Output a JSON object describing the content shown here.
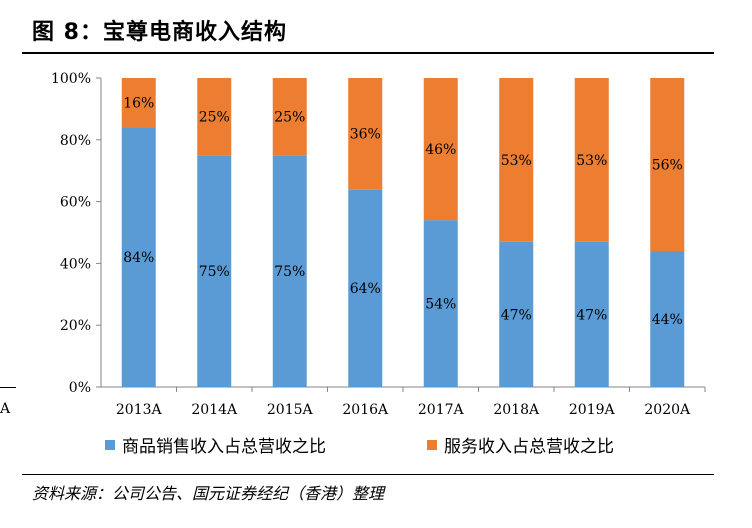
{
  "figure": {
    "title": "图 8：宝尊电商收入结构",
    "source": "资料来源：公司公告、国元证券经纪（香港）整理",
    "stray_text": "A"
  },
  "chart_data": {
    "type": "bar",
    "stacked": true,
    "categories": [
      "2013A",
      "2014A",
      "2015A",
      "2016A",
      "2017A",
      "2018A",
      "2019A",
      "2020A"
    ],
    "series": [
      {
        "name": "商品销售收入占总营收之比",
        "color": "#5b9bd5",
        "values": [
          84,
          75,
          75,
          64,
          54,
          47,
          47,
          44
        ],
        "labels": [
          "84%",
          "75%",
          "75%",
          "64%",
          "54%",
          "47%",
          "47%",
          "44%"
        ]
      },
      {
        "name": "服务收入占总营收之比",
        "color": "#ed7d31",
        "values": [
          16,
          25,
          25,
          36,
          46,
          53,
          53,
          56
        ],
        "labels": [
          "16%",
          "25%",
          "25%",
          "36%",
          "46%",
          "53%",
          "53%",
          "56%"
        ]
      }
    ],
    "y_ticks": [
      "0%",
      "20%",
      "40%",
      "60%",
      "80%",
      "100%"
    ],
    "ylim": [
      0,
      100
    ],
    "grid": false,
    "legend_position": "bottom"
  }
}
